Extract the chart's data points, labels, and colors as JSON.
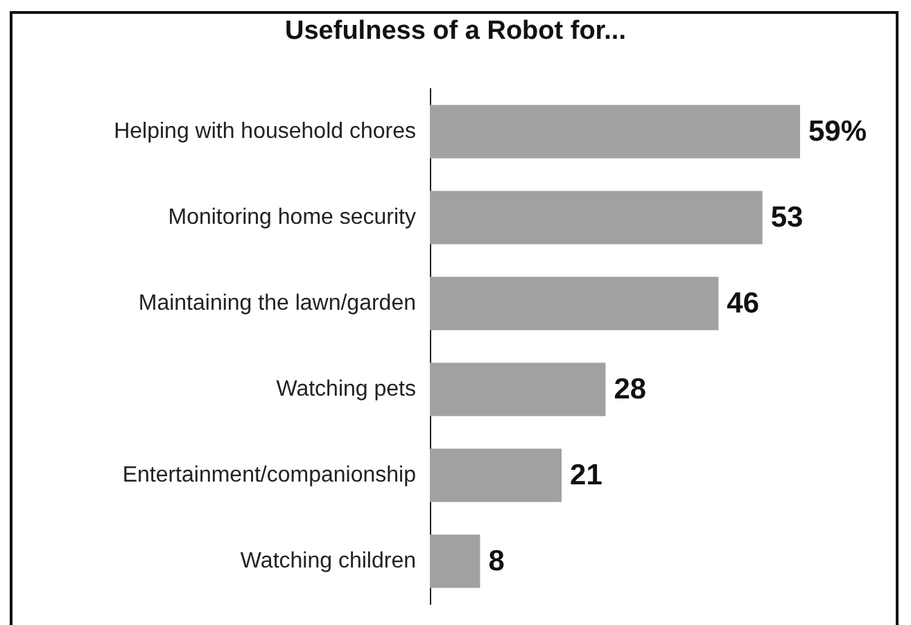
{
  "chart_data": {
    "type": "bar",
    "orientation": "horizontal",
    "title": "Usefulness of a Robot for...",
    "categories": [
      "Helping with household chores",
      "Monitoring home security",
      "Maintaining the lawn/garden",
      "Watching pets",
      "Entertainment/companionship",
      "Watching children"
    ],
    "values": [
      59,
      53,
      46,
      28,
      21,
      8
    ],
    "value_labels": [
      "59%",
      "53",
      "46",
      "28",
      "21",
      "8"
    ],
    "color": "#a1a1a3"
  }
}
